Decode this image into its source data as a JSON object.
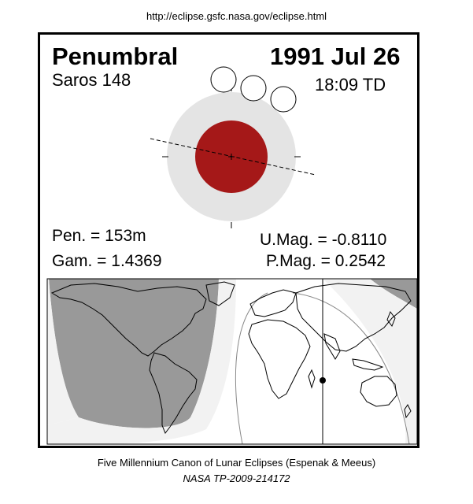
{
  "header": {
    "url": "http://eclipse.gsfc.nasa.gov/eclipse.html"
  },
  "eclipse": {
    "type": "Penumbral",
    "date": "1991 Jul 26",
    "saros": "Saros 148",
    "time": "18:09 TD",
    "pen_duration": "Pen. = 153m",
    "gamma": "Gam. = 1.4369",
    "umbral_mag": "U.Mag. = -0.8110",
    "penumbral_mag": "P.Mag. = 0.2542"
  },
  "colors": {
    "penumbra": "#e4e4e4",
    "umbra": "#a51818",
    "night_region": "#999999",
    "partial_region": "#f2f2f2"
  },
  "footer": {
    "line1": "Five Millennium Canon of Lunar Eclipses (Espenak & Meeus)",
    "line2": "NASA TP-2009-214172"
  }
}
